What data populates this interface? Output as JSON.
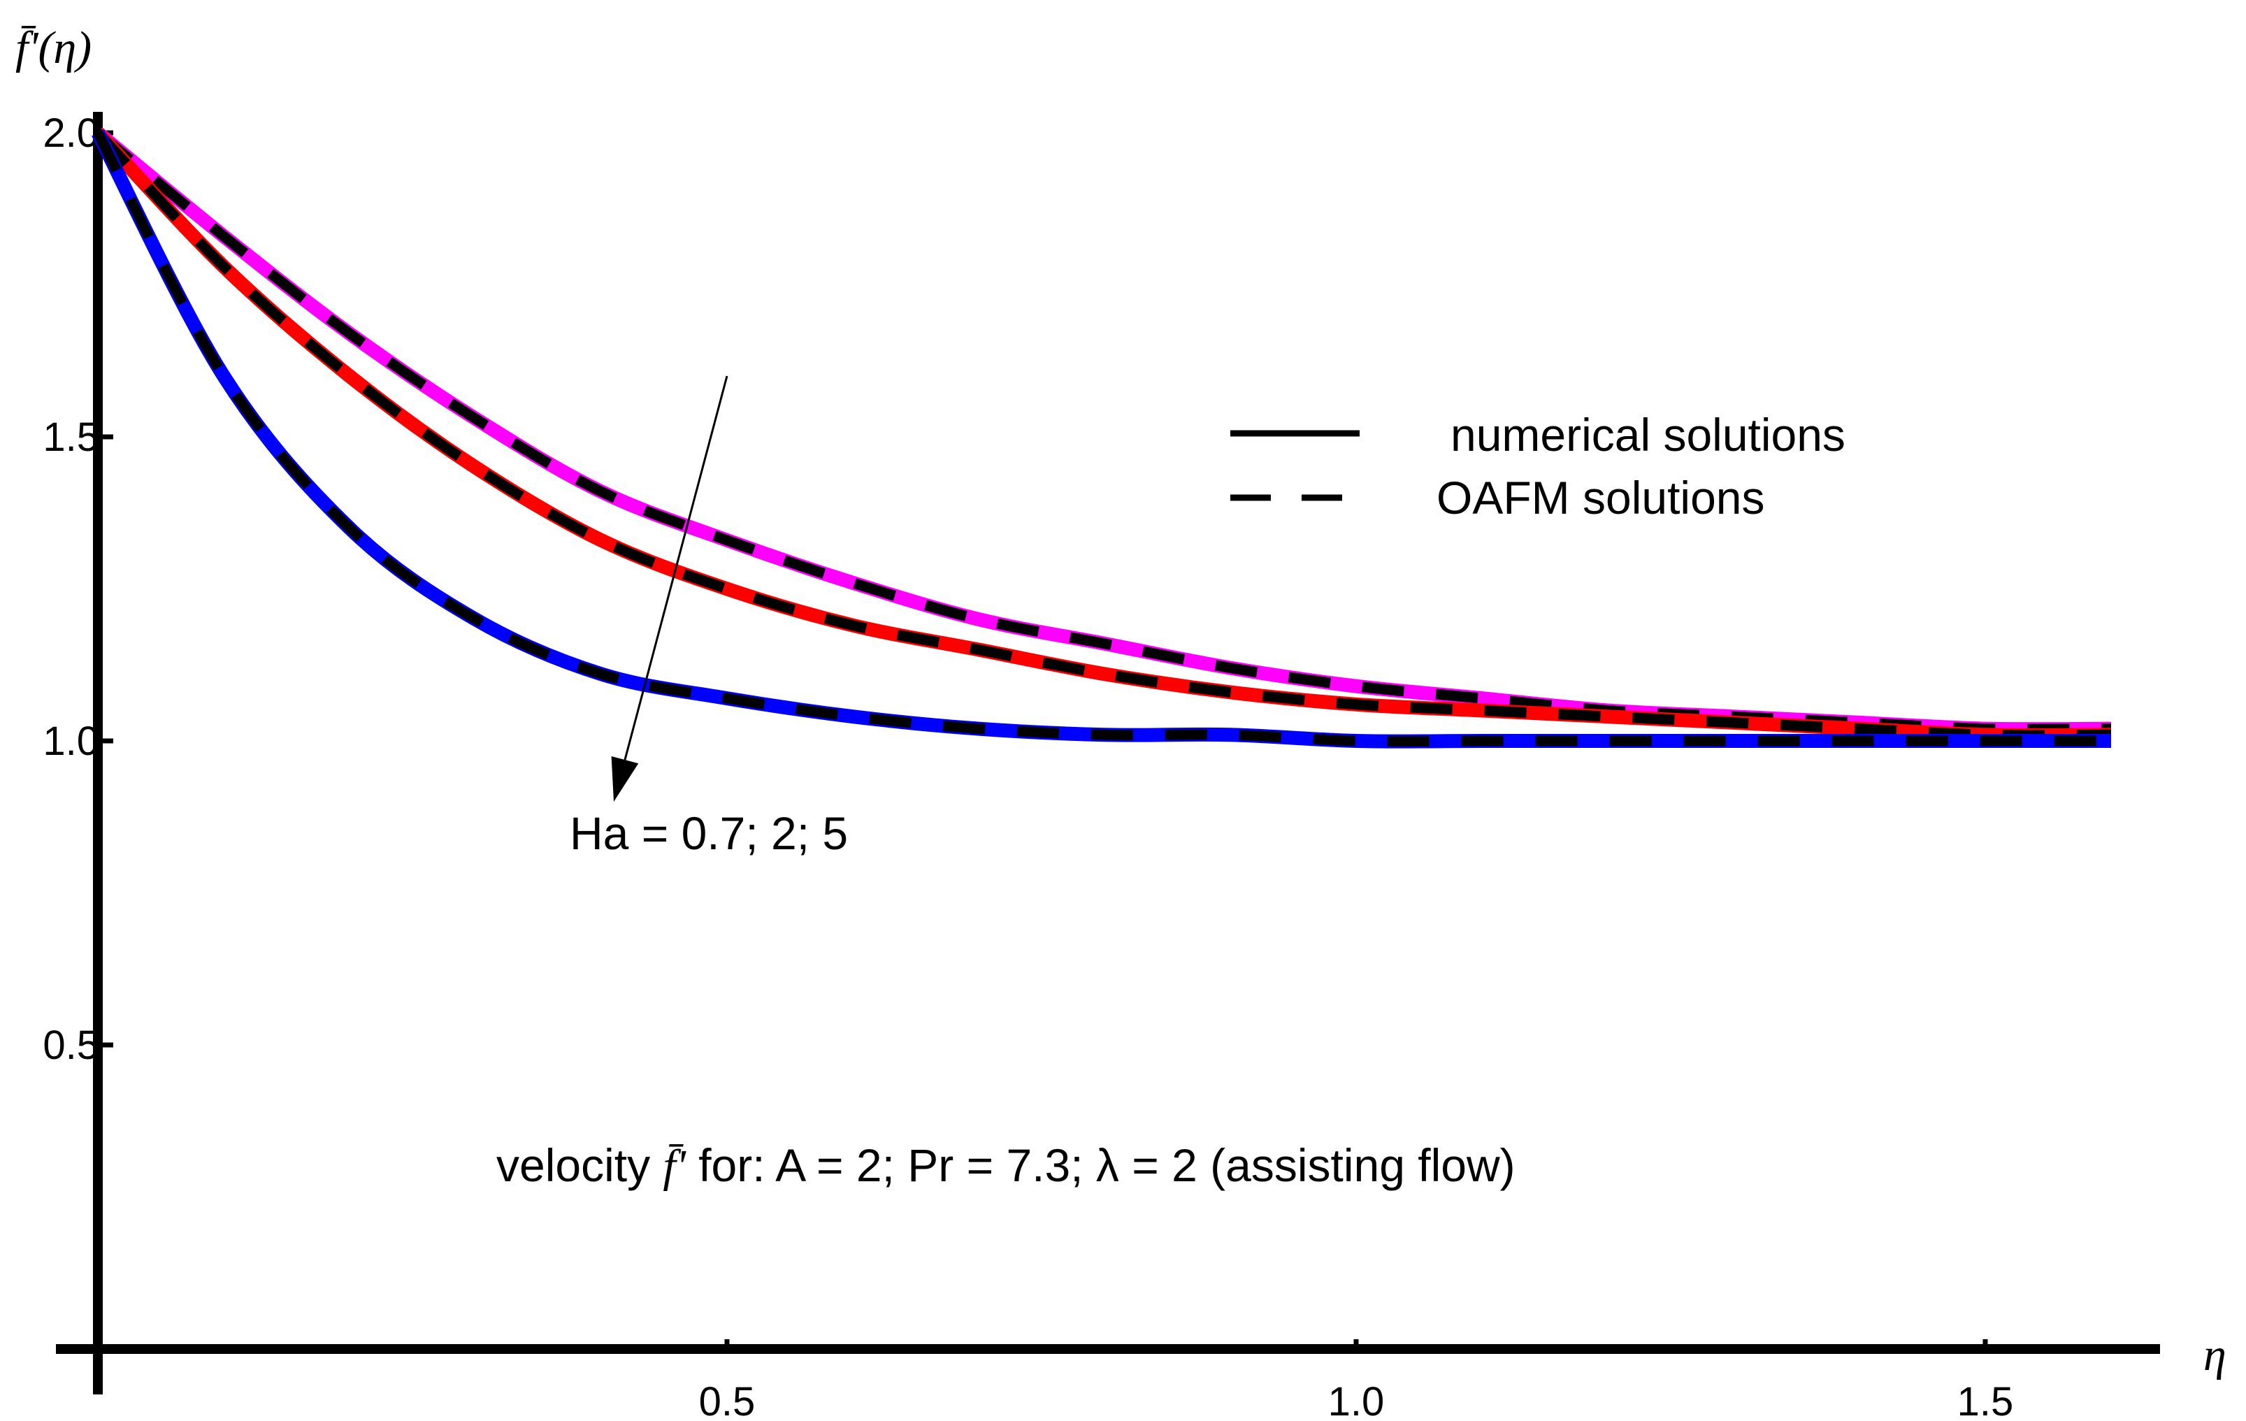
{
  "chart_data": {
    "type": "line",
    "title": "",
    "xlabel": "η",
    "ylabel": "f̄'(η)",
    "xlim": [
      0,
      1.6
    ],
    "ylim": [
      0,
      2.1
    ],
    "x_ticks": [
      {
        "value": 0.5,
        "label": "0.5"
      },
      {
        "value": 1.0,
        "label": "1.0"
      },
      {
        "value": 1.5,
        "label": "1.5"
      }
    ],
    "y_ticks": [
      {
        "value": 0.5,
        "label": "0.5"
      },
      {
        "value": 1.0,
        "label": "1.0"
      },
      {
        "value": 1.5,
        "label": "1.5"
      },
      {
        "value": 2.0,
        "label": "2.0"
      }
    ],
    "x": [
      0,
      0.1,
      0.2,
      0.3,
      0.4,
      0.5,
      0.6,
      0.7,
      0.8,
      0.9,
      1.0,
      1.1,
      1.2,
      1.3,
      1.4,
      1.5,
      1.6
    ],
    "series": [
      {
        "name": "Ha = 0.7",
        "color": "#ff00ff",
        "values": [
          2.0,
          1.83,
          1.67,
          1.53,
          1.41,
          1.33,
          1.26,
          1.2,
          1.16,
          1.12,
          1.09,
          1.07,
          1.05,
          1.04,
          1.03,
          1.02,
          1.02
        ]
      },
      {
        "name": "Ha = 2",
        "color": "#ff0000",
        "values": [
          2.0,
          1.78,
          1.6,
          1.45,
          1.33,
          1.25,
          1.19,
          1.15,
          1.11,
          1.08,
          1.06,
          1.05,
          1.04,
          1.03,
          1.02,
          1.01,
          1.01
        ]
      },
      {
        "name": "Ha = 5",
        "color": "#0000ff",
        "values": [
          2.0,
          1.6,
          1.35,
          1.2,
          1.11,
          1.07,
          1.04,
          1.02,
          1.01,
          1.01,
          1.0,
          1.0,
          1.0,
          1.0,
          1.0,
          1.0,
          1.0
        ]
      }
    ],
    "overlay": {
      "name": "OAFM solutions",
      "color": "#000000",
      "style": "dashed"
    },
    "legend": {
      "placement": "top-right",
      "entries": [
        {
          "label": "numerical solutions",
          "style": "solid"
        },
        {
          "label": "OAFM solutions",
          "style": "dashed"
        }
      ]
    },
    "annotations": {
      "arrow_label": "Ha = 0.7; 2; 5",
      "arrow_from": {
        "x": 0.5,
        "y": 1.6
      },
      "arrow_to": {
        "x": 0.41,
        "y": 0.9
      },
      "caption_prefix": "velocity ",
      "caption_symbol": "f̄'",
      "caption_rest": " for: A = 2; Pr = 7.3;  λ = 2  (assisting flow)"
    },
    "grid": false
  }
}
